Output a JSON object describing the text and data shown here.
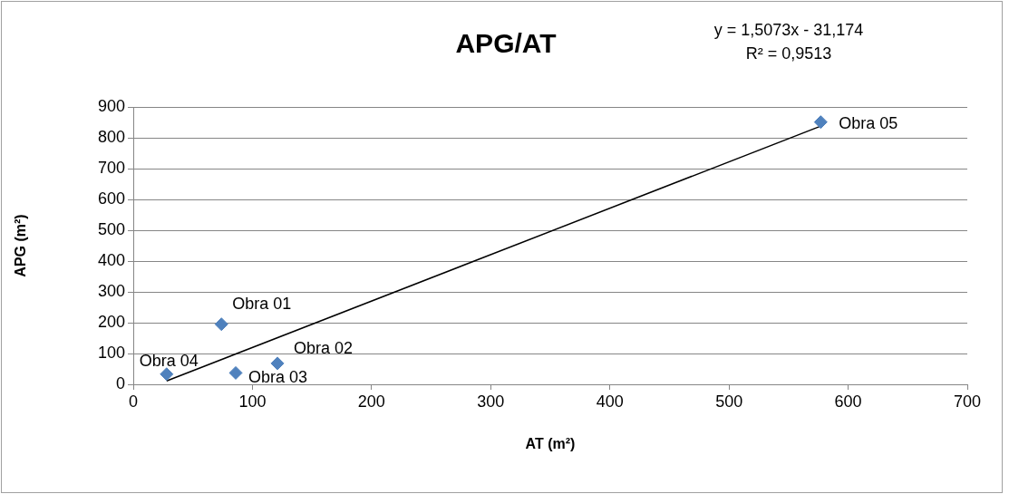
{
  "chart_data": {
    "type": "scatter",
    "title": "APG/AT",
    "xlabel": "AT (m²)",
    "ylabel": "APG (m²)",
    "series": [
      {
        "color": "#4f81bd",
        "x": [
          74,
          121,
          86,
          28,
          577
        ],
        "values": [
          195,
          68,
          37,
          33,
          851
        ]
      },
      {
        "type": "line",
        "color": "#000000",
        "x": [
          28,
          577
        ],
        "values": [
          11,
          838
        ],
        "marker": "none"
      }
    ],
    "annotations": [
      {
        "text": "Obra 01",
        "x": 74,
        "y": 195
      },
      {
        "text": "Obra 02",
        "x": 121,
        "y": 68
      },
      {
        "text": "Obra 03",
        "x": 86,
        "y": 37
      },
      {
        "text": "Obra 04",
        "x": 28,
        "y": 33
      },
      {
        "text": "Obra 05",
        "x": 577,
        "y": 851
      },
      "y = 1,5073x - 31,174",
      "R² = 0,9513"
    ],
    "xlim": [
      0,
      700
    ],
    "xticks": [
      0,
      100,
      200,
      300,
      400,
      500,
      600,
      700
    ],
    "ylim": [
      0,
      900
    ],
    "yticks": [
      0,
      100,
      200,
      300,
      400,
      500,
      600,
      700,
      800,
      900
    ],
    "grid": "y",
    "legend": false,
    "marker": "diamond"
  }
}
